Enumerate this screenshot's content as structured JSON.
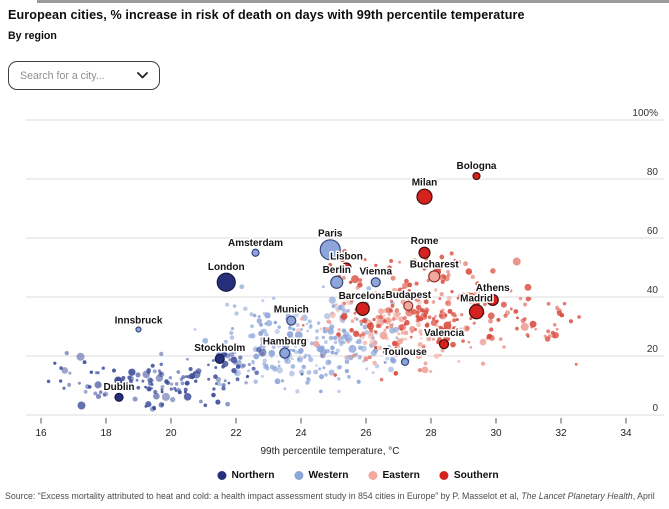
{
  "header": {
    "title": "European cities, % increase in risk of death on days with 99th percentile temperature",
    "subtitle": "By region"
  },
  "search": {
    "placeholder": "Search for a city..."
  },
  "source": {
    "prefix": "Source: “Excess mortality attributed to heat and cold: a health impact assessment study in 854 cities in Europe” by P. Masselot et al, ",
    "journal": "The Lancet Planetary Health",
    "suffix": ", April"
  },
  "chart_data": {
    "type": "scatter",
    "title": "European cities, % increase in risk of death on days with 99th percentile temperature",
    "subtitle": "By region",
    "xlabel": "99th percentile temperature, °C",
    "ylabel": "% increase in risk of death",
    "xlim": [
      16,
      34
    ],
    "ylim": [
      0,
      100
    ],
    "x_ticks": [
      16,
      18,
      20,
      22,
      24,
      26,
      28,
      30,
      32,
      34
    ],
    "y_ticks": [
      0,
      20,
      40,
      60,
      80,
      100
    ],
    "y_top_tick_label": "100%",
    "grid": "horizontal",
    "legend_position": "bottom",
    "series": [
      {
        "name": "Northern",
        "color": "#26307a",
        "bg_color": "#3d4d9b",
        "border": "#141a45",
        "points": [
          {
            "city": "London",
            "x": 21.7,
            "y": 45,
            "size": 9
          },
          {
            "city": "Stockholm",
            "x": 21.5,
            "y": 19,
            "size": 4.5
          },
          {
            "city": "Dublin",
            "x": 18.4,
            "y": 6,
            "size": 4
          }
        ]
      },
      {
        "name": "Western",
        "color": "#8da5d8",
        "bg_color": "#8da5d8",
        "border": "#37477c",
        "points": [
          {
            "city": "Paris",
            "x": 24.9,
            "y": 56,
            "size": 10
          },
          {
            "city": "Amsterdam",
            "x": 22.6,
            "y": 55,
            "size": 3.5
          },
          {
            "city": "Berlin",
            "x": 25.1,
            "y": 45,
            "size": 6
          },
          {
            "city": "Vienna",
            "x": 26.3,
            "y": 45,
            "size": 4.5
          },
          {
            "city": "Munich",
            "x": 23.7,
            "y": 32,
            "size": 4.5
          },
          {
            "city": "Hamburg",
            "x": 23.5,
            "y": 21,
            "size": 5
          },
          {
            "city": "Toulouse",
            "x": 27.2,
            "y": 18,
            "size": 3.5
          },
          {
            "city": "Innsbruck",
            "x": 19.0,
            "y": 29,
            "size": 2.5
          }
        ]
      },
      {
        "name": "Eastern",
        "color": "#f2a89f",
        "bg_color": "#f0a69d",
        "border": "#8c352b",
        "points": [
          {
            "city": "Bucharest",
            "x": 28.1,
            "y": 47,
            "size": 5.5
          },
          {
            "city": "Budapest",
            "x": 27.3,
            "y": 37,
            "size": 4.5
          }
        ]
      },
      {
        "name": "Southern",
        "color": "#d6221e",
        "bg_color": "#da4a3c",
        "border": "#3f0e0d",
        "points": [
          {
            "city": "Bologna",
            "x": 29.4,
            "y": 81,
            "size": 3.5
          },
          {
            "city": "Milan",
            "x": 27.8,
            "y": 74,
            "size": 7.5
          },
          {
            "city": "Rome",
            "x": 27.8,
            "y": 55,
            "size": 5.5
          },
          {
            "city": "Lisbon",
            "x": 25.4,
            "y": 50,
            "size": 4.5
          },
          {
            "city": "Athens",
            "x": 29.9,
            "y": 39,
            "size": 5.5
          },
          {
            "city": "Barcelona",
            "x": 25.9,
            "y": 36,
            "size": 6.5
          },
          {
            "city": "Madrid",
            "x": 29.4,
            "y": 35,
            "size": 7
          },
          {
            "city": "Valencia",
            "x": 28.4,
            "y": 24,
            "size": 4.5
          }
        ]
      }
    ],
    "background_clusters": [
      {
        "region": "Northern",
        "t_min": 16.1,
        "t_max": 24.2,
        "r_min": 2,
        "r_max": 30,
        "blobs": [
          {
            "t": 19.6,
            "r": 10,
            "st": 1.2,
            "sr": 4.5,
            "n": 90
          },
          {
            "t": 21.4,
            "r": 16,
            "st": 0.9,
            "sr": 5,
            "n": 45
          },
          {
            "t": 17.2,
            "r": 13,
            "st": 0.6,
            "sr": 3,
            "n": 15
          }
        ]
      },
      {
        "region": "Western",
        "t_min": 20.3,
        "t_max": 27.8,
        "r_min": 8,
        "r_max": 50,
        "blobs": [
          {
            "t": 23.6,
            "r": 21,
            "st": 1.2,
            "sr": 6,
            "n": 120
          },
          {
            "t": 24.8,
            "r": 29,
            "st": 1.1,
            "sr": 7,
            "n": 85
          },
          {
            "t": 22.4,
            "r": 30,
            "st": 0.8,
            "sr": 6,
            "n": 25
          },
          {
            "t": 26.2,
            "r": 22,
            "st": 0.8,
            "sr": 5,
            "n": 30
          }
        ]
      },
      {
        "region": "Eastern",
        "t_min": 23.8,
        "t_max": 29.6,
        "r_min": 14,
        "r_max": 46,
        "blobs": [
          {
            "t": 26.2,
            "r": 30,
            "st": 1.0,
            "sr": 5,
            "n": 65
          },
          {
            "t": 27.6,
            "r": 26,
            "st": 0.9,
            "sr": 6,
            "n": 40
          }
        ]
      },
      {
        "region": "Southern",
        "t_min": 23.9,
        "t_max": 32.6,
        "r_min": 12,
        "r_max": 62,
        "blobs": [
          {
            "t": 27.6,
            "r": 35,
            "st": 1.3,
            "sr": 8,
            "n": 100
          },
          {
            "t": 29.4,
            "r": 30,
            "st": 1.4,
            "sr": 7,
            "n": 60
          },
          {
            "t": 26.3,
            "r": 48,
            "st": 0.9,
            "sr": 4,
            "n": 22
          },
          {
            "t": 30.8,
            "r": 33,
            "st": 1.0,
            "sr": 5,
            "n": 25
          },
          {
            "t": 25.8,
            "r": 26,
            "st": 0.8,
            "sr": 6,
            "n": 25
          },
          {
            "t": 29.0,
            "r": 51,
            "st": 1.0,
            "sr": 3,
            "n": 15
          }
        ]
      }
    ],
    "total_cities_note": "854",
    "seed": 20230413
  }
}
